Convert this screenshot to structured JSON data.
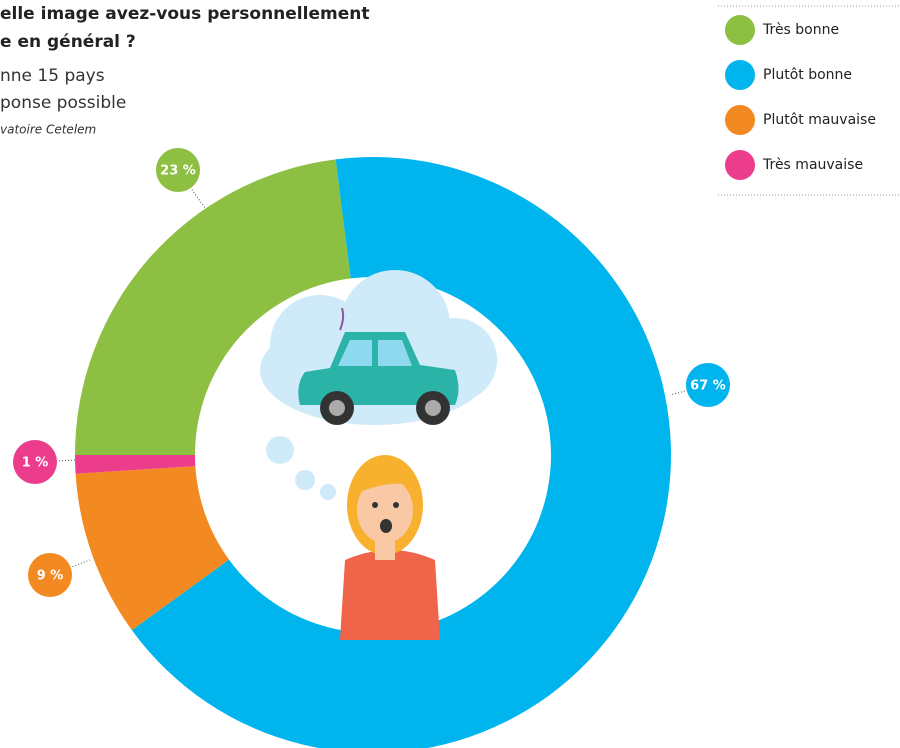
{
  "chart_data": {
    "type": "pie",
    "title": [
      "elle image avez-vous personnellement",
      "e en général ?"
    ],
    "subtitle": [
      "nne 15 pays",
      "ponse possible"
    ],
    "source": "vatoire Cetelem",
    "categories": [
      "Très bonne",
      "Plutôt bonne",
      "Plutôt mauvaise",
      "Très mauvaise"
    ],
    "values": [
      23,
      67,
      9,
      1
    ],
    "value_labels": [
      "23 %",
      "67 %",
      "9 %",
      "1 %"
    ],
    "colors": [
      "#8dbf42",
      "#00b4ed",
      "#f28a21",
      "#ec3d8c"
    ],
    "legend": "top-right"
  }
}
